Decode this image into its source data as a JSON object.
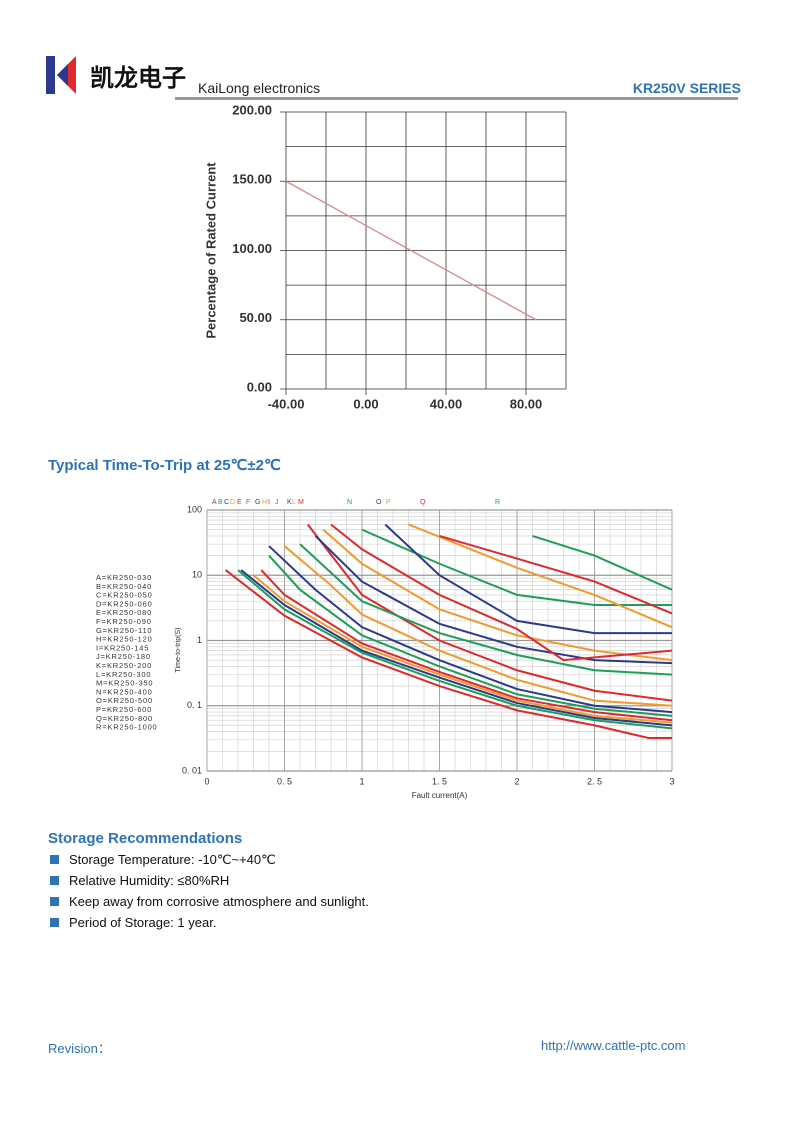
{
  "header": {
    "brand_cn": "凯龙电子",
    "brand_en": "KaiLong electronics",
    "series": "KR250V SERIES"
  },
  "chart_data": [
    {
      "type": "line",
      "ylabel": "Percentage of Rated Current",
      "x": [
        -40,
        85
      ],
      "values": [
        150,
        50
      ],
      "color": "#d98a8a",
      "xlim": [
        -40,
        100
      ],
      "ylim": [
        0,
        200
      ],
      "xticks": [
        {
          "value": -40,
          "label": "-40.00"
        },
        {
          "value": 0,
          "label": "0.00"
        },
        {
          "value": 40,
          "label": "40.00"
        },
        {
          "value": 80,
          "label": "80.00"
        }
      ],
      "yticks": [
        {
          "value": 0,
          "label": "0.00"
        },
        {
          "value": 50,
          "label": "50.00"
        },
        {
          "value": 100,
          "label": "100.00"
        },
        {
          "value": 150,
          "label": "150.00"
        },
        {
          "value": 200,
          "label": "200.00"
        }
      ],
      "x_minor_ticks": [
        -20,
        20,
        60,
        100
      ],
      "y_minor_ticks": [
        25,
        75,
        125,
        175
      ],
      "grid": true
    },
    {
      "type": "line",
      "title": "Typical Time-To-Trip at 25℃±2℃",
      "xlabel": "Fault current(A)",
      "ylabel": "Time-to-trip(S)",
      "log_y": true,
      "xlim": [
        0,
        3
      ],
      "ylim": [
        0.01,
        100
      ],
      "xticks": [
        0,
        {
          "value": 0.5,
          "label": "0. 5"
        },
        1,
        {
          "value": 1.5,
          "label": "1. 5"
        },
        2,
        {
          "value": 2.5,
          "label": "2. 5"
        },
        3
      ],
      "yticks": [
        {
          "value": 0.01,
          "label": "0. 01"
        },
        {
          "value": 0.1,
          "label": "0. 1"
        },
        1,
        10,
        100
      ],
      "grid": true,
      "series": [
        {
          "name": "A=KR250-030",
          "letter": "A",
          "color": "#e0282d",
          "x": [
            0.12,
            0.5,
            1,
            1.5,
            2,
            2.5,
            2.85,
            3
          ],
          "values": [
            12,
            2.4,
            0.55,
            0.2,
            0.085,
            0.05,
            0.032,
            0.032
          ]
        },
        {
          "name": "B=KR250-040",
          "letter": "B",
          "color": "#1e9e5a",
          "x": [
            0.2,
            0.5,
            1,
            1.5,
            2,
            2.5,
            3
          ],
          "values": [
            12,
            3,
            0.65,
            0.24,
            0.1,
            0.06,
            0.045
          ]
        },
        {
          "name": "C=KR250-050",
          "letter": "C",
          "color": "#2b3a8c",
          "x": [
            0.22,
            0.5,
            1,
            1.5,
            2,
            2.5,
            3
          ],
          "values": [
            12,
            3.5,
            0.7,
            0.27,
            0.11,
            0.065,
            0.05
          ]
        },
        {
          "name": "D=KR250-060",
          "letter": "D",
          "color": "#f29a2e",
          "x": [
            0.3,
            0.5,
            1,
            1.5,
            2,
            2.5,
            3
          ],
          "values": [
            10,
            4,
            0.8,
            0.3,
            0.12,
            0.07,
            0.055
          ]
        },
        {
          "name": "E=KR250-080",
          "letter": "E",
          "color": "#e0282d",
          "x": [
            0.35,
            0.5,
            1,
            1.5,
            2,
            2.5,
            3
          ],
          "values": [
            12,
            5,
            0.9,
            0.33,
            0.13,
            0.08,
            0.06
          ]
        },
        {
          "name": "F=KR250-090",
          "letter": "F",
          "color": "#1e9e5a",
          "x": [
            0.4,
            0.6,
            1,
            1.5,
            2,
            2.5,
            3
          ],
          "values": [
            20,
            6,
            1.2,
            0.4,
            0.15,
            0.09,
            0.07
          ]
        },
        {
          "name": "G=KR250-110",
          "letter": "G",
          "color": "#2b3a8c",
          "x": [
            0.4,
            0.7,
            1,
            1.5,
            2,
            2.5,
            3
          ],
          "values": [
            28,
            6,
            1.6,
            0.5,
            0.18,
            0.1,
            0.08
          ]
        },
        {
          "name": "H=KR250-120",
          "letter": "H",
          "color": "#f29a2e",
          "x": [
            0.5,
            0.8,
            1,
            1.5,
            2,
            2.5,
            3
          ],
          "values": [
            28,
            7,
            2.5,
            0.7,
            0.25,
            0.12,
            0.1
          ]
        },
        {
          "name": "I=KR250-145",
          "letter": "I",
          "color": "#e0282d",
          "x": [
            0.65,
            1,
            1.5,
            2,
            2.5,
            3
          ],
          "values": [
            60,
            5,
            1,
            0.35,
            0.17,
            0.12
          ]
        },
        {
          "name": "J=KR250-180",
          "letter": "J",
          "color": "#1e9e5a",
          "x": [
            0.6,
            1,
            1.5,
            2,
            2.5,
            3
          ],
          "values": [
            30,
            4,
            1.3,
            0.6,
            0.35,
            0.3
          ]
        },
        {
          "name": "K=KR250-200",
          "letter": "K",
          "color": "#2b3a8c",
          "x": [
            0.7,
            1,
            1.5,
            2,
            2.5,
            3
          ],
          "values": [
            40,
            8,
            1.8,
            0.8,
            0.5,
            0.45
          ]
        },
        {
          "name": "L=KR250-300",
          "letter": "L",
          "color": "#f29a2e",
          "x": [
            0.75,
            1,
            1.5,
            2,
            2.5,
            3
          ],
          "values": [
            50,
            15,
            3,
            1.2,
            0.7,
            0.5
          ]
        },
        {
          "name": "M=KR250-350",
          "letter": "M",
          "color": "#e0282d",
          "x": [
            0.8,
            1,
            1.5,
            2,
            2.3,
            3
          ],
          "values": [
            60,
            25,
            5,
            1.5,
            0.5,
            0.7
          ]
        },
        {
          "name": "N=KR250-400",
          "letter": "N",
          "color": "#1e9e5a",
          "x": [
            1,
            1.5,
            2,
            2.5,
            3
          ],
          "values": [
            50,
            15,
            5,
            3.5,
            3.5
          ]
        },
        {
          "name": "O=KR250-500",
          "letter": "O",
          "color": "#2b3a8c",
          "x": [
            1.15,
            1.5,
            2,
            2.5,
            3
          ],
          "values": [
            60,
            10,
            2,
            1.3,
            1.3
          ]
        },
        {
          "name": "P=KR250-600",
          "letter": "P",
          "color": "#f29a2e",
          "x": [
            1.3,
            2,
            2.5,
            3
          ],
          "values": [
            60,
            13,
            5,
            1.6
          ]
        },
        {
          "name": "Q=KR250-800",
          "letter": "Q",
          "color": "#e0282d",
          "x": [
            1.5,
            2,
            2.5,
            3
          ],
          "values": [
            40,
            18,
            8,
            2.6
          ]
        },
        {
          "name": "R=KR250-1000",
          "letter": "R",
          "color": "#1e9e5a",
          "x": [
            2.1,
            2.5,
            3
          ],
          "values": [
            40,
            20,
            6
          ]
        }
      ]
    }
  ],
  "storage": {
    "title": "Storage Recommendations",
    "items": [
      "Storage Temperature: -10℃~+40℃",
      "Relative Humidity: ≤80%RH",
      "Keep away from corrosive atmosphere and sunlight.",
      "Period of Storage: 1 year."
    ]
  },
  "footer": {
    "revision": "Revision：",
    "url": "http://www.cattle-ptc.com"
  }
}
